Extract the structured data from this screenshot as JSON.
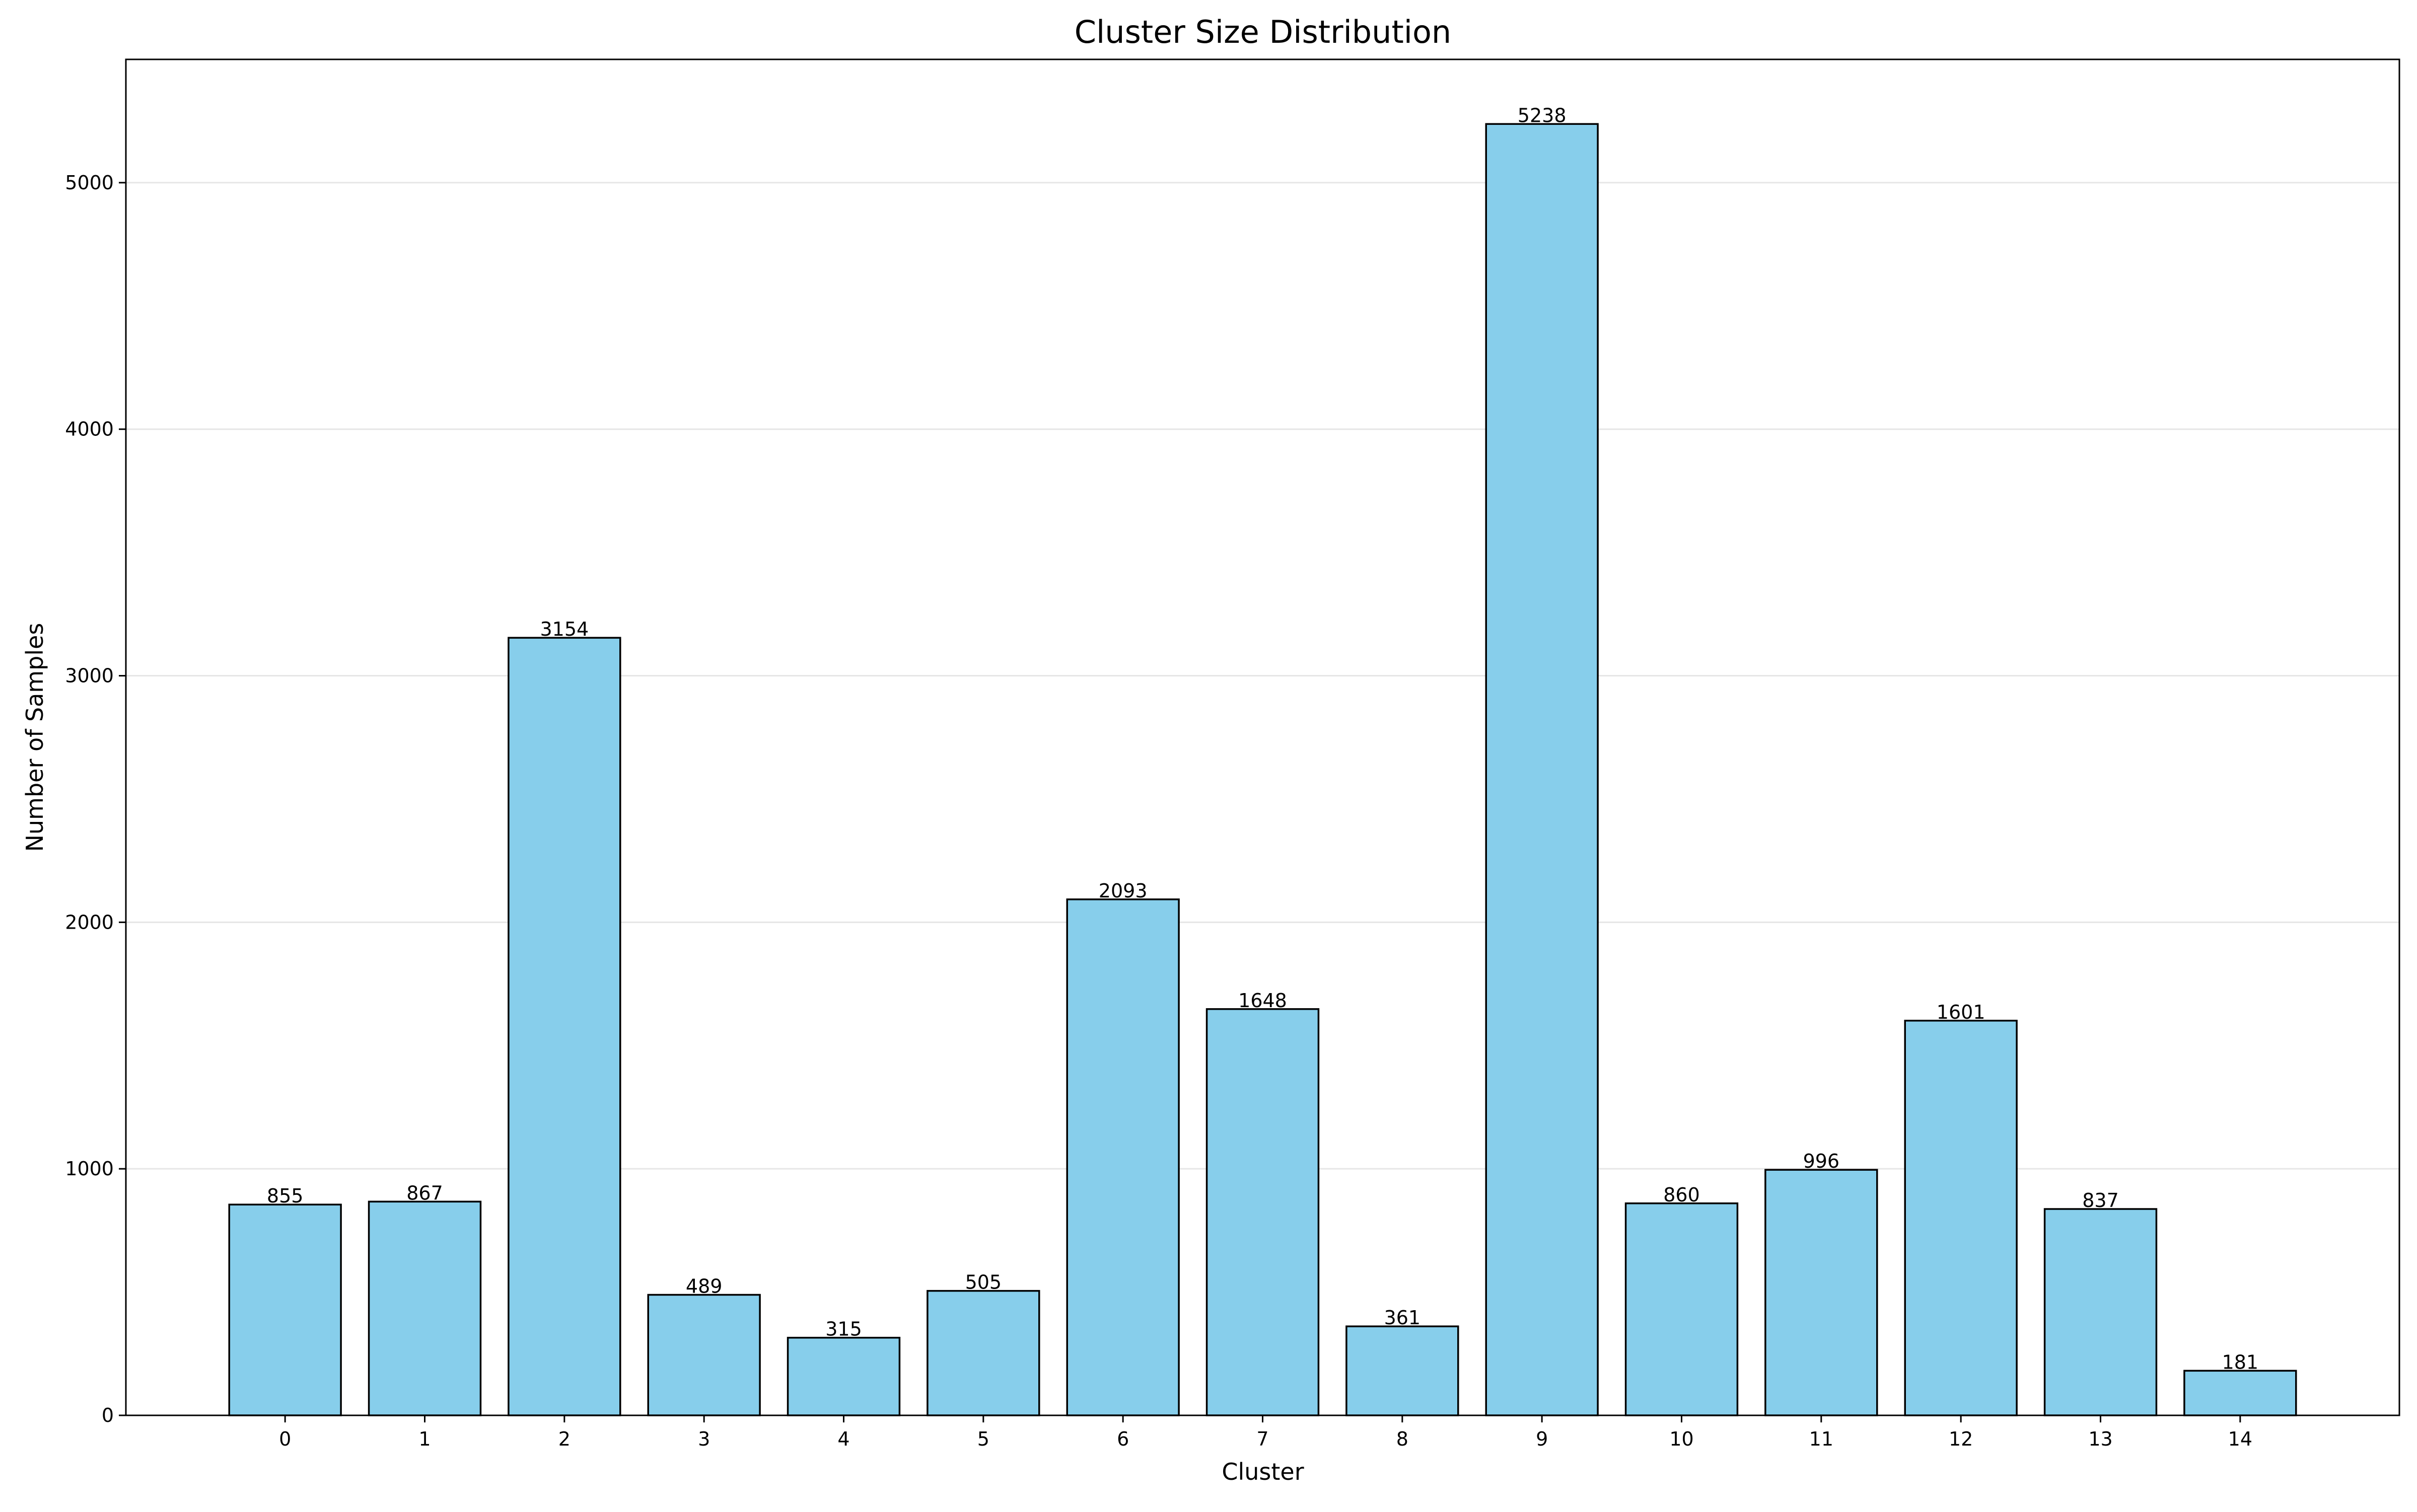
{
  "chart_data": {
    "type": "bar",
    "title": "Cluster Size Distribution",
    "xlabel": "Cluster",
    "ylabel": "Number of Samples",
    "categories": [
      "0",
      "1",
      "2",
      "3",
      "4",
      "5",
      "6",
      "7",
      "8",
      "9",
      "10",
      "11",
      "12",
      "13",
      "14"
    ],
    "values": [
      855,
      867,
      3154,
      489,
      315,
      505,
      2093,
      1648,
      361,
      5238,
      860,
      996,
      1601,
      837,
      181
    ],
    "ylim": [
      0,
      5500
    ],
    "yticks": [
      0,
      1000,
      2000,
      3000,
      4000,
      5000
    ],
    "grid": "y-axis horizontal, light gray",
    "legend": "none",
    "bar_color": "#87CEEB",
    "bar_edge_color": "#000000",
    "grid_color": "#e6e6e6"
  }
}
